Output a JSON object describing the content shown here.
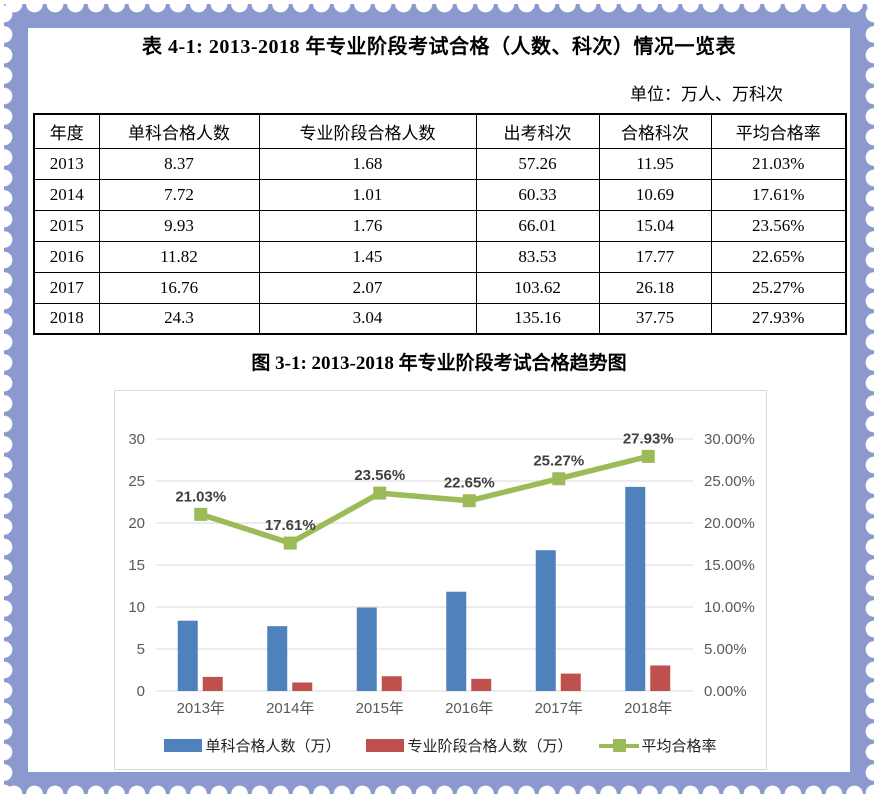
{
  "page": {
    "doc_title": "表 4-1: 2013-2018 年专业阶段考试合格（人数、科次）情况一览表",
    "unit_note": "单位：万人、万科次",
    "chart_caption": "图 3-1: 2013-2018 年专业阶段考试合格趋势图"
  },
  "colors": {
    "stamp_border": "#8C99CF",
    "bar_blue": "#4F81BD",
    "bar_red": "#C0504D",
    "line_green": "#9BBB59",
    "gridline": "#D9D9D9",
    "tick_text": "#595959",
    "data_label_text": "#404040"
  },
  "table": {
    "columns": [
      "年度",
      "单科合格人数",
      "专业阶段合格人数",
      "出考科次",
      "合格科次",
      "平均合格率"
    ],
    "rows": [
      [
        "2013",
        "8.37",
        "1.68",
        "57.26",
        "11.95",
        "21.03%"
      ],
      [
        "2014",
        "7.72",
        "1.01",
        "60.33",
        "10.69",
        "17.61%"
      ],
      [
        "2015",
        "9.93",
        "1.76",
        "66.01",
        "15.04",
        "23.56%"
      ],
      [
        "2016",
        "11.82",
        "1.45",
        "83.53",
        "17.77",
        "22.65%"
      ],
      [
        "2017",
        "16.76",
        "2.07",
        "103.62",
        "26.18",
        "25.27%"
      ],
      [
        "2018",
        "24.3",
        "3.04",
        "135.16",
        "37.75",
        "27.93%"
      ]
    ]
  },
  "chart_data": {
    "type": "bar",
    "subtype": "clustered-bar-with-line-combo",
    "title": "图 3-1: 2013-2018 年专业阶段考试合格趋势图",
    "categories": [
      "2013年",
      "2014年",
      "2015年",
      "2016年",
      "2017年",
      "2018年"
    ],
    "series": [
      {
        "name": "单科合格人数（万）",
        "type": "bar",
        "axis": "left",
        "color": "#4F81BD",
        "values": [
          8.37,
          7.72,
          9.93,
          11.82,
          16.76,
          24.3
        ]
      },
      {
        "name": "专业阶段合格人数（万）",
        "type": "bar",
        "axis": "left",
        "color": "#C0504D",
        "values": [
          1.68,
          1.01,
          1.76,
          1.45,
          2.07,
          3.04
        ]
      },
      {
        "name": "平均合格率",
        "type": "line",
        "axis": "right",
        "color": "#9BBB59",
        "values": [
          21.03,
          17.61,
          23.56,
          22.65,
          25.27,
          27.93
        ],
        "labels": [
          "21.03%",
          "17.61%",
          "23.56%",
          "22.65%",
          "25.27%",
          "27.93%"
        ]
      }
    ],
    "left_axis": {
      "min": 0,
      "max": 30,
      "step": 5,
      "ticks": [
        "0",
        "5",
        "10",
        "15",
        "20",
        "25",
        "30"
      ]
    },
    "right_axis": {
      "min": 0,
      "max": 30,
      "step": 5,
      "ticks": [
        "0.00%",
        "5.00%",
        "10.00%",
        "15.00%",
        "20.00%",
        "25.00%",
        "30.00%"
      ]
    },
    "grid": true,
    "legend_position": "bottom",
    "xlabel": "",
    "ylabel": ""
  }
}
